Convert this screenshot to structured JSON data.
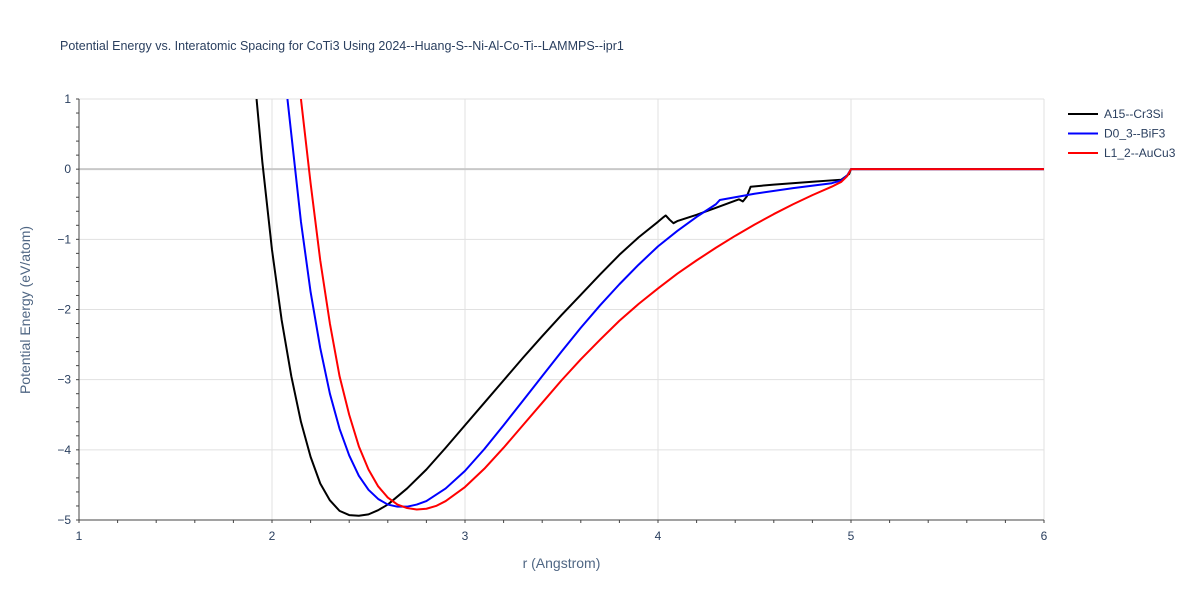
{
  "chart_data": {
    "type": "line",
    "title": "Potential Energy vs. Interatomic Spacing for CoTi3 Using 2024--Huang-S--Ni-Al-Co-Ti--LAMMPS--ipr1",
    "xlabel": "r (Angstrom)",
    "ylabel": "Potential Energy (eV/atom)",
    "xlim": [
      1,
      6
    ],
    "ylim": [
      -5,
      1
    ],
    "x_ticks": [
      "1",
      "2",
      "3",
      "4",
      "5",
      "6"
    ],
    "y_ticks": [
      "1",
      "0",
      "−1",
      "−2",
      "−3",
      "−4",
      "−5"
    ],
    "grid": true,
    "legend_position": "top-right",
    "series": [
      {
        "name": "A15--Cr3Si",
        "color": "#000000",
        "x": [
          1.92,
          1.95,
          2.0,
          2.05,
          2.1,
          2.15,
          2.2,
          2.25,
          2.3,
          2.35,
          2.4,
          2.45,
          2.5,
          2.55,
          2.6,
          2.7,
          2.8,
          2.9,
          3.0,
          3.1,
          3.2,
          3.3,
          3.4,
          3.5,
          3.6,
          3.7,
          3.8,
          3.9,
          4.0,
          4.03,
          4.04,
          4.06,
          4.08,
          4.1,
          4.2,
          4.3,
          4.4,
          4.42,
          4.44,
          4.46,
          4.48,
          4.6,
          4.8,
          4.95,
          4.99,
          5.0,
          5.2,
          5.5,
          6.0
        ],
        "y": [
          1.0,
          0.1,
          -1.15,
          -2.15,
          -2.95,
          -3.6,
          -4.1,
          -4.48,
          -4.72,
          -4.87,
          -4.93,
          -4.94,
          -4.92,
          -4.86,
          -4.78,
          -4.55,
          -4.28,
          -3.97,
          -3.65,
          -3.33,
          -3.01,
          -2.69,
          -2.38,
          -2.08,
          -1.79,
          -1.5,
          -1.22,
          -0.97,
          -0.75,
          -0.68,
          -0.66,
          -0.72,
          -0.77,
          -0.74,
          -0.65,
          -0.55,
          -0.45,
          -0.43,
          -0.46,
          -0.39,
          -0.25,
          -0.22,
          -0.18,
          -0.15,
          -0.07,
          0.0,
          0.0,
          0.0,
          0.0
        ]
      },
      {
        "name": "D0_3--BiF3",
        "color": "#0000ff",
        "x": [
          2.08,
          2.1,
          2.15,
          2.2,
          2.25,
          2.3,
          2.35,
          2.4,
          2.45,
          2.5,
          2.55,
          2.6,
          2.65,
          2.7,
          2.75,
          2.8,
          2.9,
          3.0,
          3.1,
          3.2,
          3.3,
          3.4,
          3.5,
          3.6,
          3.7,
          3.8,
          3.9,
          4.0,
          4.1,
          4.2,
          4.3,
          4.32,
          4.5,
          4.7,
          4.9,
          4.95,
          4.98,
          5.0,
          5.5,
          6.0
        ],
        "y": [
          1.0,
          0.5,
          -0.75,
          -1.75,
          -2.55,
          -3.2,
          -3.7,
          -4.08,
          -4.37,
          -4.57,
          -4.7,
          -4.78,
          -4.81,
          -4.81,
          -4.78,
          -4.73,
          -4.55,
          -4.3,
          -3.99,
          -3.65,
          -3.3,
          -2.95,
          -2.6,
          -2.26,
          -1.94,
          -1.64,
          -1.36,
          -1.1,
          -0.88,
          -0.68,
          -0.5,
          -0.44,
          -0.35,
          -0.27,
          -0.2,
          -0.16,
          -0.09,
          0.0,
          0.0,
          0.0
        ]
      },
      {
        "name": "L1_2--AuCu3",
        "color": "#ff0000",
        "x": [
          2.15,
          2.2,
          2.25,
          2.3,
          2.35,
          2.4,
          2.45,
          2.5,
          2.55,
          2.6,
          2.65,
          2.7,
          2.75,
          2.8,
          2.85,
          2.9,
          3.0,
          3.1,
          3.2,
          3.3,
          3.4,
          3.5,
          3.6,
          3.7,
          3.8,
          3.9,
          4.0,
          4.1,
          4.2,
          4.3,
          4.4,
          4.5,
          4.6,
          4.7,
          4.8,
          4.9,
          4.95,
          4.98,
          5.0,
          5.5,
          6.0
        ],
        "y": [
          1.0,
          -0.2,
          -1.3,
          -2.2,
          -2.95,
          -3.5,
          -3.95,
          -4.28,
          -4.52,
          -4.68,
          -4.78,
          -4.83,
          -4.85,
          -4.84,
          -4.8,
          -4.73,
          -4.53,
          -4.27,
          -3.97,
          -3.65,
          -3.33,
          -3.01,
          -2.71,
          -2.43,
          -2.16,
          -1.92,
          -1.7,
          -1.49,
          -1.3,
          -1.12,
          -0.95,
          -0.79,
          -0.64,
          -0.5,
          -0.37,
          -0.25,
          -0.18,
          -0.1,
          0.0,
          0.0,
          0.0
        ]
      }
    ]
  }
}
